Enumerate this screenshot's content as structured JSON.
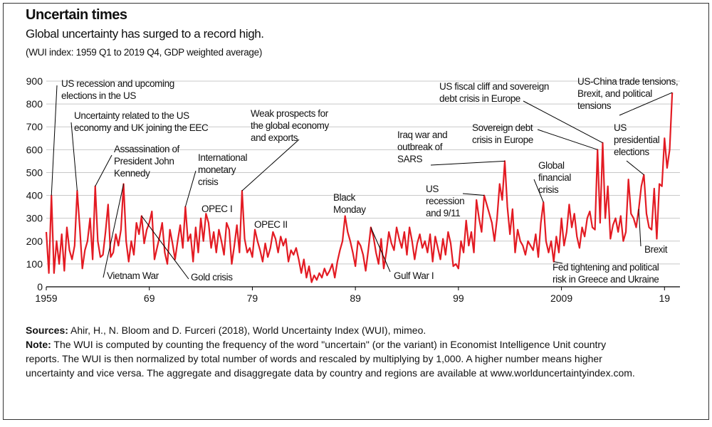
{
  "chart_data": {
    "type": "line",
    "title": "Uncertain times",
    "subtitle": "Global uncertainty has surged to a record high.",
    "note_top": "(WUI index: 1959 Q1 to 2019 Q4, GDP weighted average)",
    "color": "#e31b23",
    "grid": true,
    "xlim": [
      1959,
      2020.5
    ],
    "ylim": [
      0,
      900
    ],
    "yticks": [
      0,
      100,
      200,
      300,
      400,
      500,
      600,
      700,
      800,
      900
    ],
    "xticks": [
      1959,
      {
        "value": 1969,
        "label": "69"
      },
      {
        "value": 1979,
        "label": "79"
      },
      {
        "value": 1989,
        "label": "89"
      },
      {
        "value": 1999,
        "label": "99"
      },
      2009,
      {
        "value": 2019,
        "label": "19"
      }
    ],
    "x": [
      1959,
      1959.25,
      1959.5,
      1959.75,
      1960,
      1960.25,
      1960.5,
      1960.75,
      1961,
      1961.25,
      1961.5,
      1961.75,
      1962,
      1962.25,
      1962.5,
      1962.75,
      1963,
      1963.25,
      1963.5,
      1963.75,
      1964,
      1964.25,
      1964.5,
      1964.75,
      1965,
      1965.25,
      1965.5,
      1965.75,
      1966,
      1966.25,
      1966.5,
      1966.75,
      1967,
      1967.25,
      1967.5,
      1967.75,
      1968,
      1968.25,
      1968.5,
      1968.75,
      1969,
      1969.25,
      1969.5,
      1969.75,
      1970,
      1970.25,
      1970.5,
      1970.75,
      1971,
      1971.25,
      1971.5,
      1971.75,
      1972,
      1972.25,
      1972.5,
      1972.75,
      1973,
      1973.25,
      1973.5,
      1973.75,
      1974,
      1974.25,
      1974.5,
      1974.75,
      1975,
      1975.25,
      1975.5,
      1975.75,
      1976,
      1976.25,
      1976.5,
      1976.75,
      1977,
      1977.25,
      1977.5,
      1977.75,
      1978,
      1978.25,
      1978.5,
      1978.75,
      1979,
      1979.25,
      1979.5,
      1979.75,
      1980,
      1980.25,
      1980.5,
      1980.75,
      1981,
      1981.25,
      1981.5,
      1981.75,
      1982,
      1982.25,
      1982.5,
      1982.75,
      1983,
      1983.25,
      1983.5,
      1983.75,
      1984,
      1984.25,
      1984.5,
      1984.75,
      1985,
      1985.25,
      1985.5,
      1985.75,
      1986,
      1986.25,
      1986.5,
      1986.75,
      1987,
      1987.25,
      1987.5,
      1987.75,
      1988,
      1988.25,
      1988.5,
      1988.75,
      1989,
      1989.25,
      1989.5,
      1989.75,
      1990,
      1990.25,
      1990.5,
      1990.75,
      1991,
      1991.25,
      1991.5,
      1991.75,
      1992,
      1992.25,
      1992.5,
      1992.75,
      1993,
      1993.25,
      1993.5,
      1993.75,
      1994,
      1994.25,
      1994.5,
      1994.75,
      1995,
      1995.25,
      1995.5,
      1995.75,
      1996,
      1996.25,
      1996.5,
      1996.75,
      1997,
      1997.25,
      1997.5,
      1997.75,
      1998,
      1998.25,
      1998.5,
      1998.75,
      1999,
      1999.25,
      1999.5,
      1999.75,
      2000,
      2000.25,
      2000.5,
      2000.75,
      2001,
      2001.25,
      2001.5,
      2001.75,
      2002,
      2002.25,
      2002.5,
      2002.75,
      2003,
      2003.25,
      2003.5,
      2003.75,
      2004,
      2004.25,
      2004.5,
      2004.75,
      2005,
      2005.25,
      2005.5,
      2005.75,
      2006,
      2006.25,
      2006.5,
      2006.75,
      2007,
      2007.25,
      2007.5,
      2007.75,
      2008,
      2008.25,
      2008.5,
      2008.75,
      2009,
      2009.25,
      2009.5,
      2009.75,
      2010,
      2010.25,
      2010.5,
      2010.75,
      2011,
      2011.25,
      2011.5,
      2011.75,
      2012,
      2012.25,
      2012.5,
      2012.75,
      2013,
      2013.25,
      2013.5,
      2013.75,
      2014,
      2014.25,
      2014.5,
      2014.75,
      2015,
      2015.25,
      2015.5,
      2015.75,
      2016,
      2016.25,
      2016.5,
      2016.75,
      2017,
      2017.25,
      2017.5,
      2017.75,
      2018,
      2018.25,
      2018.5,
      2018.75,
      2019,
      2019.25,
      2019.5,
      2019.75
    ],
    "values": [
      240,
      60,
      400,
      60,
      200,
      100,
      230,
      70,
      260,
      160,
      120,
      180,
      420,
      260,
      80,
      160,
      200,
      300,
      120,
      440,
      200,
      130,
      140,
      240,
      360,
      130,
      150,
      230,
      180,
      250,
      450,
      200,
      110,
      200,
      140,
      280,
      230,
      310,
      190,
      250,
      280,
      330,
      120,
      170,
      220,
      280,
      150,
      100,
      250,
      190,
      120,
      200,
      270,
      170,
      350,
      200,
      230,
      110,
      260,
      150,
      300,
      200,
      320,
      280,
      170,
      240,
      150,
      250,
      200,
      140,
      280,
      250,
      100,
      180,
      270,
      150,
      420,
      210,
      150,
      170,
      130,
      250,
      200,
      160,
      110,
      190,
      130,
      170,
      240,
      210,
      150,
      220,
      180,
      210,
      110,
      160,
      140,
      170,
      120,
      60,
      120,
      40,
      90,
      20,
      50,
      30,
      60,
      40,
      80,
      50,
      70,
      100,
      40,
      110,
      160,
      200,
      310,
      240,
      200,
      150,
      90,
      200,
      180,
      140,
      70,
      160,
      260,
      220,
      150,
      100,
      210,
      80,
      150,
      240,
      190,
      160,
      260,
      210,
      170,
      240,
      140,
      260,
      200,
      120,
      190,
      230,
      170,
      200,
      150,
      230,
      110,
      220,
      170,
      120,
      210,
      140,
      240,
      190,
      90,
      100,
      80,
      200,
      150,
      290,
      180,
      240,
      150,
      380,
      300,
      240,
      400,
      360,
      320,
      280,
      200,
      300,
      450,
      380,
      550,
      350,
      230,
      340,
      150,
      250,
      200,
      180,
      140,
      200,
      180,
      160,
      230,
      130,
      280,
      370,
      200,
      150,
      200,
      110,
      220,
      150,
      300,
      180,
      240,
      360,
      260,
      320,
      220,
      170,
      260,
      220,
      300,
      330,
      260,
      250,
      600,
      280,
      630,
      300,
      440,
      210,
      270,
      300,
      240,
      310,
      200,
      240,
      470,
      320,
      300,
      260,
      340,
      440,
      490,
      320,
      260,
      250,
      430,
      210,
      450,
      440,
      650,
      520,
      600,
      850
    ],
    "annotations": [
      {
        "lines": [
          "US recession and upcoming",
          "elections in the US"
        ]
      },
      {
        "lines": [
          "Uncertainty related to the US",
          "economy and UK joining the EEC"
        ]
      },
      {
        "lines": [
          "Assassination of",
          "President John",
          "Kennedy"
        ]
      },
      {
        "lines": [
          "Vietnam War"
        ]
      },
      {
        "lines": [
          "Gold crisis"
        ]
      },
      {
        "lines": [
          "International",
          "monetary",
          "crisis"
        ]
      },
      {
        "lines": [
          "OPEC I"
        ]
      },
      {
        "lines": [
          "Weak prospects for",
          "the global economy",
          "and exports"
        ]
      },
      {
        "lines": [
          "OPEC II"
        ]
      },
      {
        "lines": [
          "Black",
          "Monday"
        ]
      },
      {
        "lines": [
          "Gulf War I"
        ]
      },
      {
        "lines": [
          "Iraq war and",
          "outbreak of",
          "SARS"
        ]
      },
      {
        "lines": [
          "US",
          "recession",
          "and 9/11"
        ]
      },
      {
        "lines": [
          "Sovereign debt",
          "crisis in Europe"
        ]
      },
      {
        "lines": [
          "US fiscal cliff and sovereign",
          "debt crisis in Europe"
        ]
      },
      {
        "lines": [
          "Global",
          "financial",
          "crisis"
        ]
      },
      {
        "lines": [
          "Fed tightening and political",
          "risk in Greece and Ukraine"
        ]
      },
      {
        "lines": [
          "US",
          "presidential",
          "elections"
        ]
      },
      {
        "lines": [
          "Brexit"
        ]
      },
      {
        "lines": [
          "US-China trade tensions,",
          "Brexit, and political",
          "tensions"
        ]
      }
    ],
    "sources": {
      "label": "Sources:",
      "text": "Ahir, H., N. Bloom and D. Furceri (2018), World Uncertainty Index (WUI), mimeo."
    },
    "note": {
      "label": "Note:",
      "lines": [
        "The WUI is computed by counting the frequency of the word \"uncertain\" (or the variant) in Economist Intelligence Unit country",
        "reports. The WUI is then normalized by total number of words and rescaled by multiplying by 1,000. A higher number means higher",
        "uncertainty and vice versa. The aggregate and disaggregate data by country and regions are available at www.worlduncertaintyindex.com."
      ]
    }
  }
}
